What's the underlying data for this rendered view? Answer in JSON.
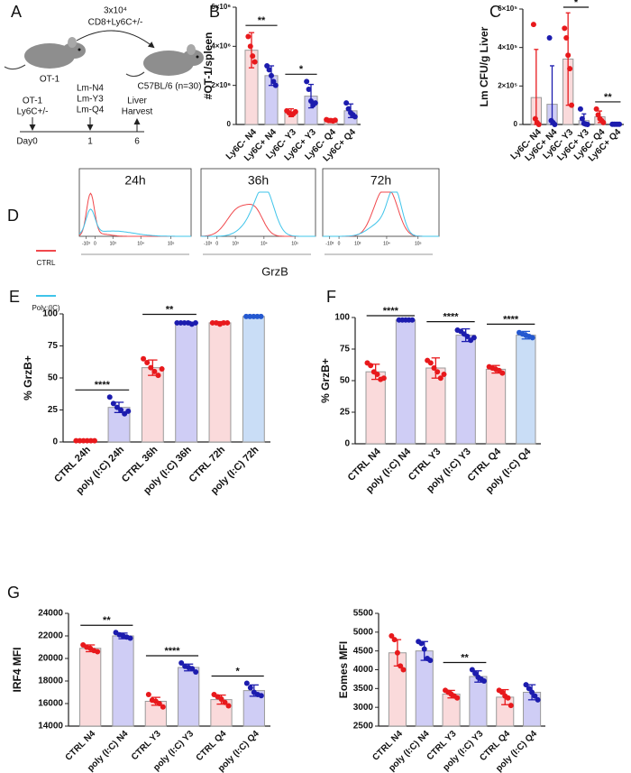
{
  "panel_labels": [
    "A",
    "B",
    "C",
    "D",
    "E",
    "F",
    "G"
  ],
  "schematic": {
    "cell_count": "3x10⁴",
    "cell_type": "CD8+Ly6C+/-",
    "donor": "OT-1",
    "recipient": "C57BL/6 (n=30)",
    "transfer": [
      "OT-1",
      "Ly6C+/-"
    ],
    "infection": [
      "Lm-N4",
      "Lm-Y3",
      "Lm-Q4"
    ],
    "harvest": [
      "Liver",
      "Harvest"
    ],
    "days": [
      "Day0",
      "1",
      "6"
    ]
  },
  "flow": {
    "legend": [
      {
        "name": "CTRL",
        "color": "#f0484c"
      },
      {
        "name": "Poly:(IC)",
        "color": "#3fc4ea"
      }
    ],
    "timepoints": [
      "24h",
      "36h",
      "72h"
    ],
    "x_label": "GrzB",
    "x_tick_labels": [
      "-10³",
      "0",
      "10³",
      "10⁴",
      "10⁵"
    ]
  },
  "chart_data": [
    {
      "type": "bar",
      "y_label": "#OT-1/spleen",
      "categories": [
        "Ly6C- N4",
        "Ly6C+ N4",
        "Ly6C- Y3",
        "Ly6C+ Y3",
        "Ly6C- Q4",
        "Ly6C+ Q4"
      ],
      "values": [
        3800000,
        2500000,
        600000,
        1450000,
        200000,
        700000
      ],
      "errors": [
        900000,
        500000,
        200000,
        600000,
        50000,
        350000
      ],
      "points": [
        [
          4500000,
          4000000,
          3500000,
          3200000
        ],
        [
          3000000,
          2800000,
          2500000,
          2200000,
          2000000
        ],
        [
          700000,
          600000,
          500000,
          550000,
          650000
        ],
        [
          2200000,
          1800000,
          1200000,
          1000000,
          1100000
        ],
        [
          250000,
          200000,
          200000,
          180000,
          220000
        ],
        [
          1100000,
          800000,
          600000,
          500000,
          400000
        ]
      ],
      "bar_colors": [
        "#fadadb",
        "#cfcdf5",
        "#fadadb",
        "#cfcdf5",
        "#fadadb",
        "#cfcdf5"
      ],
      "point_colors": [
        "#e8191c",
        "#1c1cae",
        "#e8191c",
        "#1c1cae",
        "#e8191c",
        "#1c1cae"
      ],
      "ylim": [
        0,
        6000000
      ],
      "yticks": [
        0,
        {
          "value": 2000000,
          "label": "2×10⁶"
        },
        {
          "value": 4000000,
          "label": "4×10⁶"
        },
        {
          "value": 6000000,
          "label": "6×10⁶"
        }
      ],
      "annotations": [
        {
          "text": "**",
          "between": [
            "Ly6C- N4",
            "Ly6C+ N4"
          ]
        },
        {
          "text": "*",
          "between": [
            "Ly6C- Y3",
            "Ly6C+ Y3"
          ]
        }
      ]
    },
    {
      "type": "bar",
      "y_label": "Lm CFU/g Liver",
      "categories": [
        "Ly6C- N4",
        "Ly6C+ N4",
        "Ly6C- Y3",
        "Ly6C+ Y3",
        "Ly6C- Q4",
        "Ly6C+ Q4"
      ],
      "values": [
        140000,
        105000,
        340000,
        20000,
        40000,
        1000
      ],
      "errors": [
        250000,
        200000,
        240000,
        35000,
        30000,
        1000
      ],
      "points": [
        [
          520000,
          30000,
          10000,
          0
        ],
        [
          450000,
          20000,
          10000,
          0
        ],
        [
          500000,
          450000,
          360000,
          290000,
          100000
        ],
        [
          80000,
          30000,
          5000,
          2000,
          0
        ],
        [
          80000,
          50000,
          30000,
          20000,
          10000
        ],
        [
          1000,
          1000,
          1000,
          1000,
          1000
        ]
      ],
      "bar_colors": [
        "#fadadb",
        "#cfcdf5",
        "#fadadb",
        "#cfcdf5",
        "#fadadb",
        "#cfcdf5"
      ],
      "point_colors": [
        "#e8191c",
        "#1c1cae",
        "#e8191c",
        "#1c1cae",
        "#e8191c",
        "#1c1cae"
      ],
      "ylim": [
        0,
        600000
      ],
      "yticks": [
        0,
        {
          "value": 200000,
          "label": "2×10⁵"
        },
        {
          "value": 400000,
          "label": "4×10⁵"
        },
        {
          "value": 600000,
          "label": "6×10⁵"
        }
      ],
      "annotations": [
        {
          "text": "*",
          "between": [
            "Ly6C- Y3",
            "Ly6C+ Y3"
          ]
        },
        {
          "text": "**",
          "between": [
            "Ly6C- Q4",
            "Ly6C+ Q4"
          ]
        }
      ]
    },
    {
      "type": "bar",
      "y_label": "% GrzB+",
      "categories": [
        "CTRL 24h",
        "poly (I:C) 24h",
        "CTRL 36h",
        "poly (I:C) 36h",
        "CTRL 72h",
        "poly (I:C) 72h"
      ],
      "values": [
        1,
        27,
        58,
        93,
        93,
        98
      ],
      "errors": [
        0.5,
        4,
        6,
        1,
        1,
        0.5
      ],
      "points": [
        [
          1,
          1,
          1,
          1,
          1,
          1
        ],
        [
          35,
          30,
          27,
          25,
          22,
          24
        ],
        [
          65,
          62,
          58,
          55,
          52,
          57
        ],
        [
          93,
          93,
          93,
          93,
          92,
          93
        ],
        [
          93,
          93,
          92,
          93,
          93
        ],
        [
          98,
          98,
          98,
          98,
          98
        ]
      ],
      "bar_colors": [
        "#fadadb",
        "#cfcdf5",
        "#fadadb",
        "#cfcdf5",
        "#fadadb",
        "#c9ddf6"
      ],
      "point_colors": [
        "#e8191c",
        "#1c1cae",
        "#e8191c",
        "#1c1cae",
        "#e8191c",
        "#2458d0"
      ],
      "ylim": [
        0,
        100
      ],
      "yticks": [
        0,
        25,
        50,
        75,
        100
      ],
      "annotations": [
        {
          "text": "****",
          "between": [
            "CTRL 24h",
            "poly (I:C) 24h"
          ]
        },
        {
          "text": "**",
          "between": [
            "CTRL 36h",
            "poly (I:C) 36h"
          ]
        }
      ]
    },
    {
      "type": "bar",
      "y_label": "% GrzB+",
      "categories": [
        "CTRL N4",
        "poly (I:C) N4",
        "CTRL Y3",
        "poly (I:C) Y3",
        "CTRL Q4",
        "poly (I:C) Q4"
      ],
      "values": [
        57,
        98,
        60,
        86,
        59,
        86
      ],
      "errors": [
        6,
        0.5,
        8,
        5,
        3,
        3
      ],
      "points": [
        [
          64,
          62,
          57,
          55,
          51,
          52
        ],
        [
          98,
          98,
          98,
          98,
          98
        ],
        [
          66,
          64,
          60,
          57,
          52,
          55
        ],
        [
          90,
          89,
          87,
          85,
          82,
          84
        ],
        [
          61,
          60,
          59,
          58,
          56
        ],
        [
          88,
          87,
          86,
          85,
          84
        ]
      ],
      "bar_colors": [
        "#fadadb",
        "#cfcdf5",
        "#fadadb",
        "#cfcdf5",
        "#fadadb",
        "#c9ddf6"
      ],
      "point_colors": [
        "#e8191c",
        "#1c1cae",
        "#e8191c",
        "#1c1cae",
        "#e8191c",
        "#2458d0"
      ],
      "ylim": [
        0,
        100
      ],
      "yticks": [
        0,
        25,
        50,
        75,
        100
      ],
      "annotations": [
        {
          "text": "****",
          "between": [
            "CTRL N4",
            "poly (I:C) N4"
          ]
        },
        {
          "text": "****",
          "between": [
            "CTRL Y3",
            "poly (I:C) Y3"
          ]
        },
        {
          "text": "****",
          "between": [
            "CTRL Q4",
            "poly (I:C) Q4"
          ]
        }
      ]
    },
    {
      "type": "bar",
      "y_label": "IRF4 MFI",
      "categories": [
        "CTRL N4",
        "poly (I:C) N4",
        "CTRL Y3",
        "poly (I:C) Y3",
        "CTRL Q4",
        "poly (I:C) Q4"
      ],
      "values": [
        20900,
        22000,
        16200,
        19200,
        16350,
        17150
      ],
      "errors": [
        300,
        250,
        350,
        300,
        400,
        500
      ],
      "points": [
        [
          21200,
          21000,
          20900,
          20700,
          20600
        ],
        [
          22300,
          22100,
          22000,
          21900,
          21800
        ],
        [
          16800,
          16300,
          16200,
          16000,
          15700
        ],
        [
          19600,
          19300,
          19200,
          19100,
          18800
        ],
        [
          16800,
          16600,
          16400,
          16100,
          15800
        ],
        [
          17800,
          17400,
          17000,
          16800,
          16700
        ]
      ],
      "bar_colors": [
        "#fadadb",
        "#cfcdf5",
        "#fadadb",
        "#cfcdf5",
        "#fadadb",
        "#cfcdf5"
      ],
      "point_colors": [
        "#e8191c",
        "#1c1cae",
        "#e8191c",
        "#1c1cae",
        "#e8191c",
        "#1c1cae"
      ],
      "ylim": [
        14000,
        24000
      ],
      "yticks": [
        14000,
        16000,
        18000,
        20000,
        22000,
        24000
      ],
      "annotations": [
        {
          "text": "**",
          "between": [
            "CTRL N4",
            "poly (I:C) N4"
          ]
        },
        {
          "text": "****",
          "between": [
            "CTRL Y3",
            "poly (I:C) Y3"
          ]
        },
        {
          "text": "*",
          "between": [
            "CTRL Q4",
            "poly (I:C) Q4"
          ]
        }
      ]
    },
    {
      "type": "bar",
      "y_label": "Eomes MFI",
      "categories": [
        "CTRL N4",
        "poly (I:C) N4",
        "CTRL Y3",
        "poly (I:C) Y3",
        "CTRL Q4",
        "poly (I:C) Q4"
      ],
      "values": [
        4450,
        4500,
        3350,
        3820,
        3270,
        3400
      ],
      "errors": [
        350,
        250,
        100,
        150,
        200,
        200
      ],
      "points": [
        [
          4900,
          4800,
          4450,
          4100,
          4000
        ],
        [
          4750,
          4700,
          4550,
          4300,
          4250
        ],
        [
          3450,
          3400,
          3350,
          3300,
          3250
        ],
        [
          4000,
          3900,
          3800,
          3750,
          3700
        ],
        [
          3450,
          3400,
          3300,
          3250,
          3050
        ],
        [
          3600,
          3500,
          3400,
          3300,
          3200
        ]
      ],
      "bar_colors": [
        "#fadadb",
        "#cfcdf5",
        "#fadadb",
        "#cfcdf5",
        "#fadadb",
        "#cfcdf5"
      ],
      "point_colors": [
        "#e8191c",
        "#1c1cae",
        "#e8191c",
        "#1c1cae",
        "#e8191c",
        "#1c1cae"
      ],
      "ylim": [
        2500,
        5500
      ],
      "yticks": [
        2500,
        3000,
        3500,
        4000,
        4500,
        5000,
        5500
      ],
      "annotations": [
        {
          "text": "**",
          "between": [
            "CTRL Y3",
            "poly (I:C) Y3"
          ]
        }
      ]
    }
  ]
}
